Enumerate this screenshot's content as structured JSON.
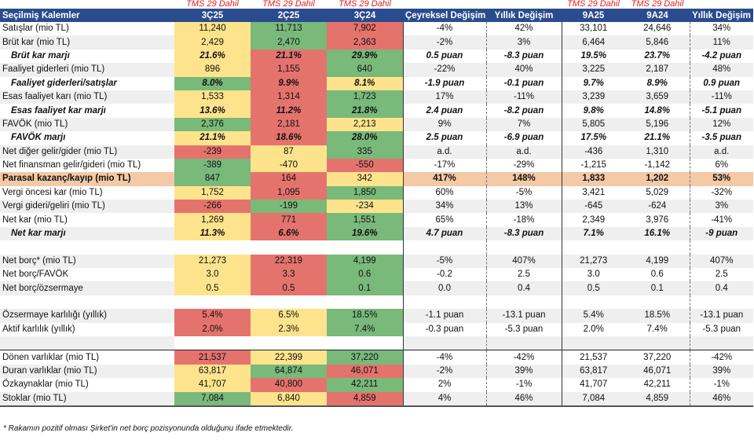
{
  "tms_labels": [
    "TMS 29 Dahil",
    "TMS 29 Dahil",
    "TMS 29 Dahil",
    "TMS 29 Dahil",
    "TMS 29 Dahil"
  ],
  "header": [
    "Seçilmiş Kalemler",
    "3Ç25",
    "2Ç25",
    "3Ç24",
    "Çeyreksel Değişim",
    "Yıllık Değişim",
    "9A25",
    "9A24",
    "Yıllık Değişim"
  ],
  "colors": {
    "yellow": "#fde48c",
    "green": "#79b97a",
    "red": "#e5736d",
    "header": "#2a4b8d",
    "highlight": "#f3c9a6"
  },
  "rows": [
    {
      "label": "Satışlar (mio TL)",
      "vals": [
        "11,240",
        "11,713",
        "7,902",
        "-4%",
        "42%",
        "33,101",
        "24,646",
        "34%"
      ],
      "heat": [
        "Y",
        "G",
        "R"
      ],
      "style": ""
    },
    {
      "label": "Brüt kar (mio TL)",
      "vals": [
        "2,429",
        "2,470",
        "2,363",
        "-2%",
        "3%",
        "6,464",
        "5,846",
        "11%"
      ],
      "heat": [
        "Y",
        "G",
        "R"
      ],
      "style": ""
    },
    {
      "label": "Brüt kar marjı",
      "vals": [
        "21.6%",
        "21.1%",
        "29.9%",
        "0.5 puan",
        "-8.3 puan",
        "19.5%",
        "23.7%",
        "-4.2 puan"
      ],
      "heat": [
        "Y",
        "R",
        "G"
      ],
      "style": "bi"
    },
    {
      "label": "Faaliyet giderleri (mio TL)",
      "vals": [
        "896",
        "1,155",
        "640",
        "-22%",
        "40%",
        "3,225",
        "2,187",
        "48%"
      ],
      "heat": [
        "Y",
        "R",
        "G"
      ],
      "style": ""
    },
    {
      "label": "Faaliyet giderleri/satışlar",
      "vals": [
        "8.0%",
        "9.9%",
        "8.1%",
        "-1.9 puan",
        "-0.1 puan",
        "9.7%",
        "8.9%",
        "0.9 puan"
      ],
      "heat": [
        "G",
        "R",
        "Y"
      ],
      "style": "bi"
    },
    {
      "label": "Esas faaliyet karı (mio TL)",
      "vals": [
        "1,533",
        "1,314",
        "1,723",
        "17%",
        "-11%",
        "3,239",
        "3,659",
        "-11%"
      ],
      "heat": [
        "Y",
        "R",
        "G"
      ],
      "style": ""
    },
    {
      "label": "Esas faaliyet kar marjı",
      "vals": [
        "13.6%",
        "11.2%",
        "21.8%",
        "2.4 puan",
        "-8.2 puan",
        "9.8%",
        "14.8%",
        "-5.1 puan"
      ],
      "heat": [
        "Y",
        "R",
        "G"
      ],
      "style": "bi"
    },
    {
      "label": "FAVÖK (mio TL)",
      "vals": [
        "2,376",
        "2,181",
        "2,213",
        "9%",
        "7%",
        "5,805",
        "5,196",
        "12%"
      ],
      "heat": [
        "G",
        "R",
        "Y"
      ],
      "style": ""
    },
    {
      "label": "FAVÖK marjı",
      "vals": [
        "21.1%",
        "18.6%",
        "28.0%",
        "2.5 puan",
        "-6.9 puan",
        "17.5%",
        "21.1%",
        "-3.5 puan"
      ],
      "heat": [
        "Y",
        "R",
        "G"
      ],
      "style": "bi"
    },
    {
      "label": "Net diğer gelir/gider (mio TL)",
      "vals": [
        "-239",
        "87",
        "335",
        "a.d.",
        "a.d.",
        "-436",
        "1,310",
        "a.d."
      ],
      "heat": [
        "R",
        "Y",
        "G"
      ],
      "style": ""
    },
    {
      "label": "Net finansman gelir/gideri (mio TL)",
      "vals": [
        "-389",
        "-470",
        "-550",
        "-17%",
        "-29%",
        "-1,215",
        "-1,142",
        "6%"
      ],
      "heat": [
        "G",
        "Y",
        "R"
      ],
      "style": ""
    },
    {
      "label": "Parasal kazanç/kayıp (mio TL)",
      "vals": [
        "847",
        "164",
        "342",
        "417%",
        "148%",
        "1,833",
        "1,202",
        "53%"
      ],
      "heat": [
        "G",
        "R",
        "Y"
      ],
      "style": "hl"
    },
    {
      "label": "Vergi öncesi kar (mio TL)",
      "vals": [
        "1,752",
        "1,095",
        "1,850",
        "60%",
        "-5%",
        "3,421",
        "5,029",
        "-32%"
      ],
      "heat": [
        "Y",
        "R",
        "G"
      ],
      "style": ""
    },
    {
      "label": "Vergi gideri/geliri (mio TL)",
      "vals": [
        "-266",
        "-199",
        "-234",
        "34%",
        "13%",
        "-645",
        "-624",
        "3%"
      ],
      "heat": [
        "R",
        "G",
        "Y"
      ],
      "style": ""
    },
    {
      "label": "Net kar (mio TL)",
      "vals": [
        "1,269",
        "771",
        "1,551",
        "65%",
        "-18%",
        "2,349",
        "3,976",
        "-41%"
      ],
      "heat": [
        "Y",
        "R",
        "G"
      ],
      "style": ""
    },
    {
      "label": "Net kar marjı",
      "vals": [
        "11.3%",
        "6.6%",
        "19.6%",
        "4.7 puan",
        "-8.3 puan",
        "7.1%",
        "16.1%",
        "-9 puan"
      ],
      "heat": [
        "Y",
        "R",
        "G"
      ],
      "style": "bi"
    },
    {
      "label": "",
      "vals": [
        "",
        "",
        "",
        "",
        "",
        "",
        "",
        ""
      ],
      "heat": [
        "E",
        "E",
        "E"
      ],
      "style": "blank"
    },
    {
      "label": "Net borç* (mio TL)",
      "vals": [
        "21,273",
        "22,319",
        "4,199",
        "-5%",
        "407%",
        "21,273",
        "4,199",
        "407%"
      ],
      "heat": [
        "Y",
        "R",
        "G"
      ],
      "style": ""
    },
    {
      "label": "Net borç/FAVÖK",
      "vals": [
        "3.0",
        "3.3",
        "0.6",
        "-0.2",
        "2.5",
        "3.0",
        "0.6",
        "2.5"
      ],
      "heat": [
        "Y",
        "R",
        "G"
      ],
      "style": ""
    },
    {
      "label": "Net borç/özsermaye",
      "vals": [
        "0.5",
        "0.5",
        "0.1",
        "0.0",
        "0.4",
        "0.5",
        "0.1",
        "0.4"
      ],
      "heat": [
        "Y",
        "R",
        "G"
      ],
      "style": ""
    },
    {
      "label": "",
      "vals": [
        "",
        "",
        "",
        "",
        "",
        "",
        "",
        ""
      ],
      "heat": [
        "E",
        "E",
        "E"
      ],
      "style": "blank"
    },
    {
      "label": "Özsermaye karlılığı (yıllık)",
      "vals": [
        "5.4%",
        "6.5%",
        "18.5%",
        "-1.1 puan",
        "-13.1 puan",
        "5.4%",
        "18.5%",
        "-13.1 puan"
      ],
      "heat": [
        "R",
        "Y",
        "G"
      ],
      "style": ""
    },
    {
      "label": "Aktif karlılık (yıllık)",
      "vals": [
        "2.0%",
        "2.3%",
        "7.4%",
        "-0.3 puan",
        "-5.3 puan",
        "2.0%",
        "7.4%",
        "-5.3 puan"
      ],
      "heat": [
        "R",
        "Y",
        "G"
      ],
      "style": ""
    },
    {
      "label": "",
      "vals": [
        "",
        "",
        "",
        "",
        "",
        "",
        "",
        ""
      ],
      "heat": [
        "E",
        "E",
        "E"
      ],
      "style": "blank"
    },
    {
      "label": "Dönen varlıklar (mio TL)",
      "vals": [
        "21,537",
        "22,399",
        "37,220",
        "-4%",
        "-42%",
        "21,537",
        "37,220",
        "-42%"
      ],
      "heat": [
        "R",
        "Y",
        "G"
      ],
      "style": "top"
    },
    {
      "label": "Duran varlıklar (mio TL)",
      "vals": [
        "63,817",
        "64,874",
        "46,071",
        "-2%",
        "39%",
        "63,817",
        "46,071",
        "39%"
      ],
      "heat": [
        "Y",
        "G",
        "R"
      ],
      "style": ""
    },
    {
      "label": "Özkaynaklar (mio TL)",
      "vals": [
        "41,707",
        "40,800",
        "42,211",
        "2%",
        "-1%",
        "41,707",
        "42,211",
        "-1%"
      ],
      "heat": [
        "Y",
        "R",
        "G"
      ],
      "style": ""
    },
    {
      "label": "Stoklar (mio TL)",
      "vals": [
        "7,084",
        "6,840",
        "4,859",
        "4%",
        "46%",
        "7,084",
        "4,859",
        "46%"
      ],
      "heat": [
        "G",
        "Y",
        "R"
      ],
      "style": "last"
    }
  ],
  "footnote": "* Rakamın pozitif olması Şirket'in net borç pozisyonunda olduğunu ifade etmektedir."
}
